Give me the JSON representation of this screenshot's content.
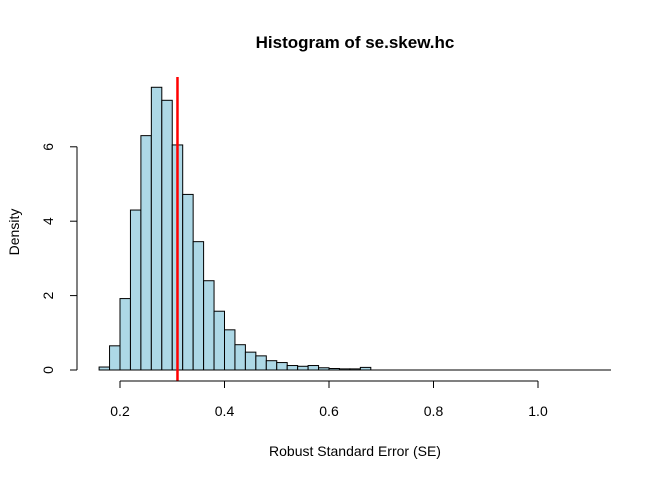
{
  "chart_data": {
    "type": "bar",
    "title": "Histogram of se.skew.hc",
    "xlabel": "Robust Standard Error (SE)",
    "ylabel": "Density",
    "xlim": [
      0.15,
      1.15
    ],
    "ylim": [
      0,
      7.9
    ],
    "x_ticks": [
      0.2,
      0.4,
      0.6,
      0.8,
      1.0
    ],
    "x_tick_labels": [
      "0.2",
      "0.4",
      "0.6",
      "0.8",
      "1.0"
    ],
    "y_ticks": [
      0,
      2,
      4,
      6
    ],
    "y_tick_labels": [
      "0",
      "2",
      "4",
      "6"
    ],
    "bin_width": 0.02,
    "bin_starts": [
      0.16,
      0.18,
      0.2,
      0.22,
      0.24,
      0.26,
      0.28,
      0.3,
      0.32,
      0.34,
      0.36,
      0.38,
      0.4,
      0.42,
      0.44,
      0.46,
      0.48,
      0.5,
      0.52,
      0.54,
      0.56,
      0.58,
      0.6,
      0.62,
      0.64,
      0.66
    ],
    "values": [
      0.08,
      0.65,
      1.92,
      4.3,
      6.3,
      7.6,
      7.25,
      6.05,
      4.72,
      3.45,
      2.4,
      1.58,
      1.08,
      0.68,
      0.48,
      0.38,
      0.25,
      0.2,
      0.12,
      0.1,
      0.12,
      0.06,
      0.04,
      0.03,
      0.03,
      0.07
    ],
    "bar_color": "#add8e6",
    "reference_line": {
      "x": 0.31,
      "color": "#ff0000"
    },
    "grid": false
  }
}
